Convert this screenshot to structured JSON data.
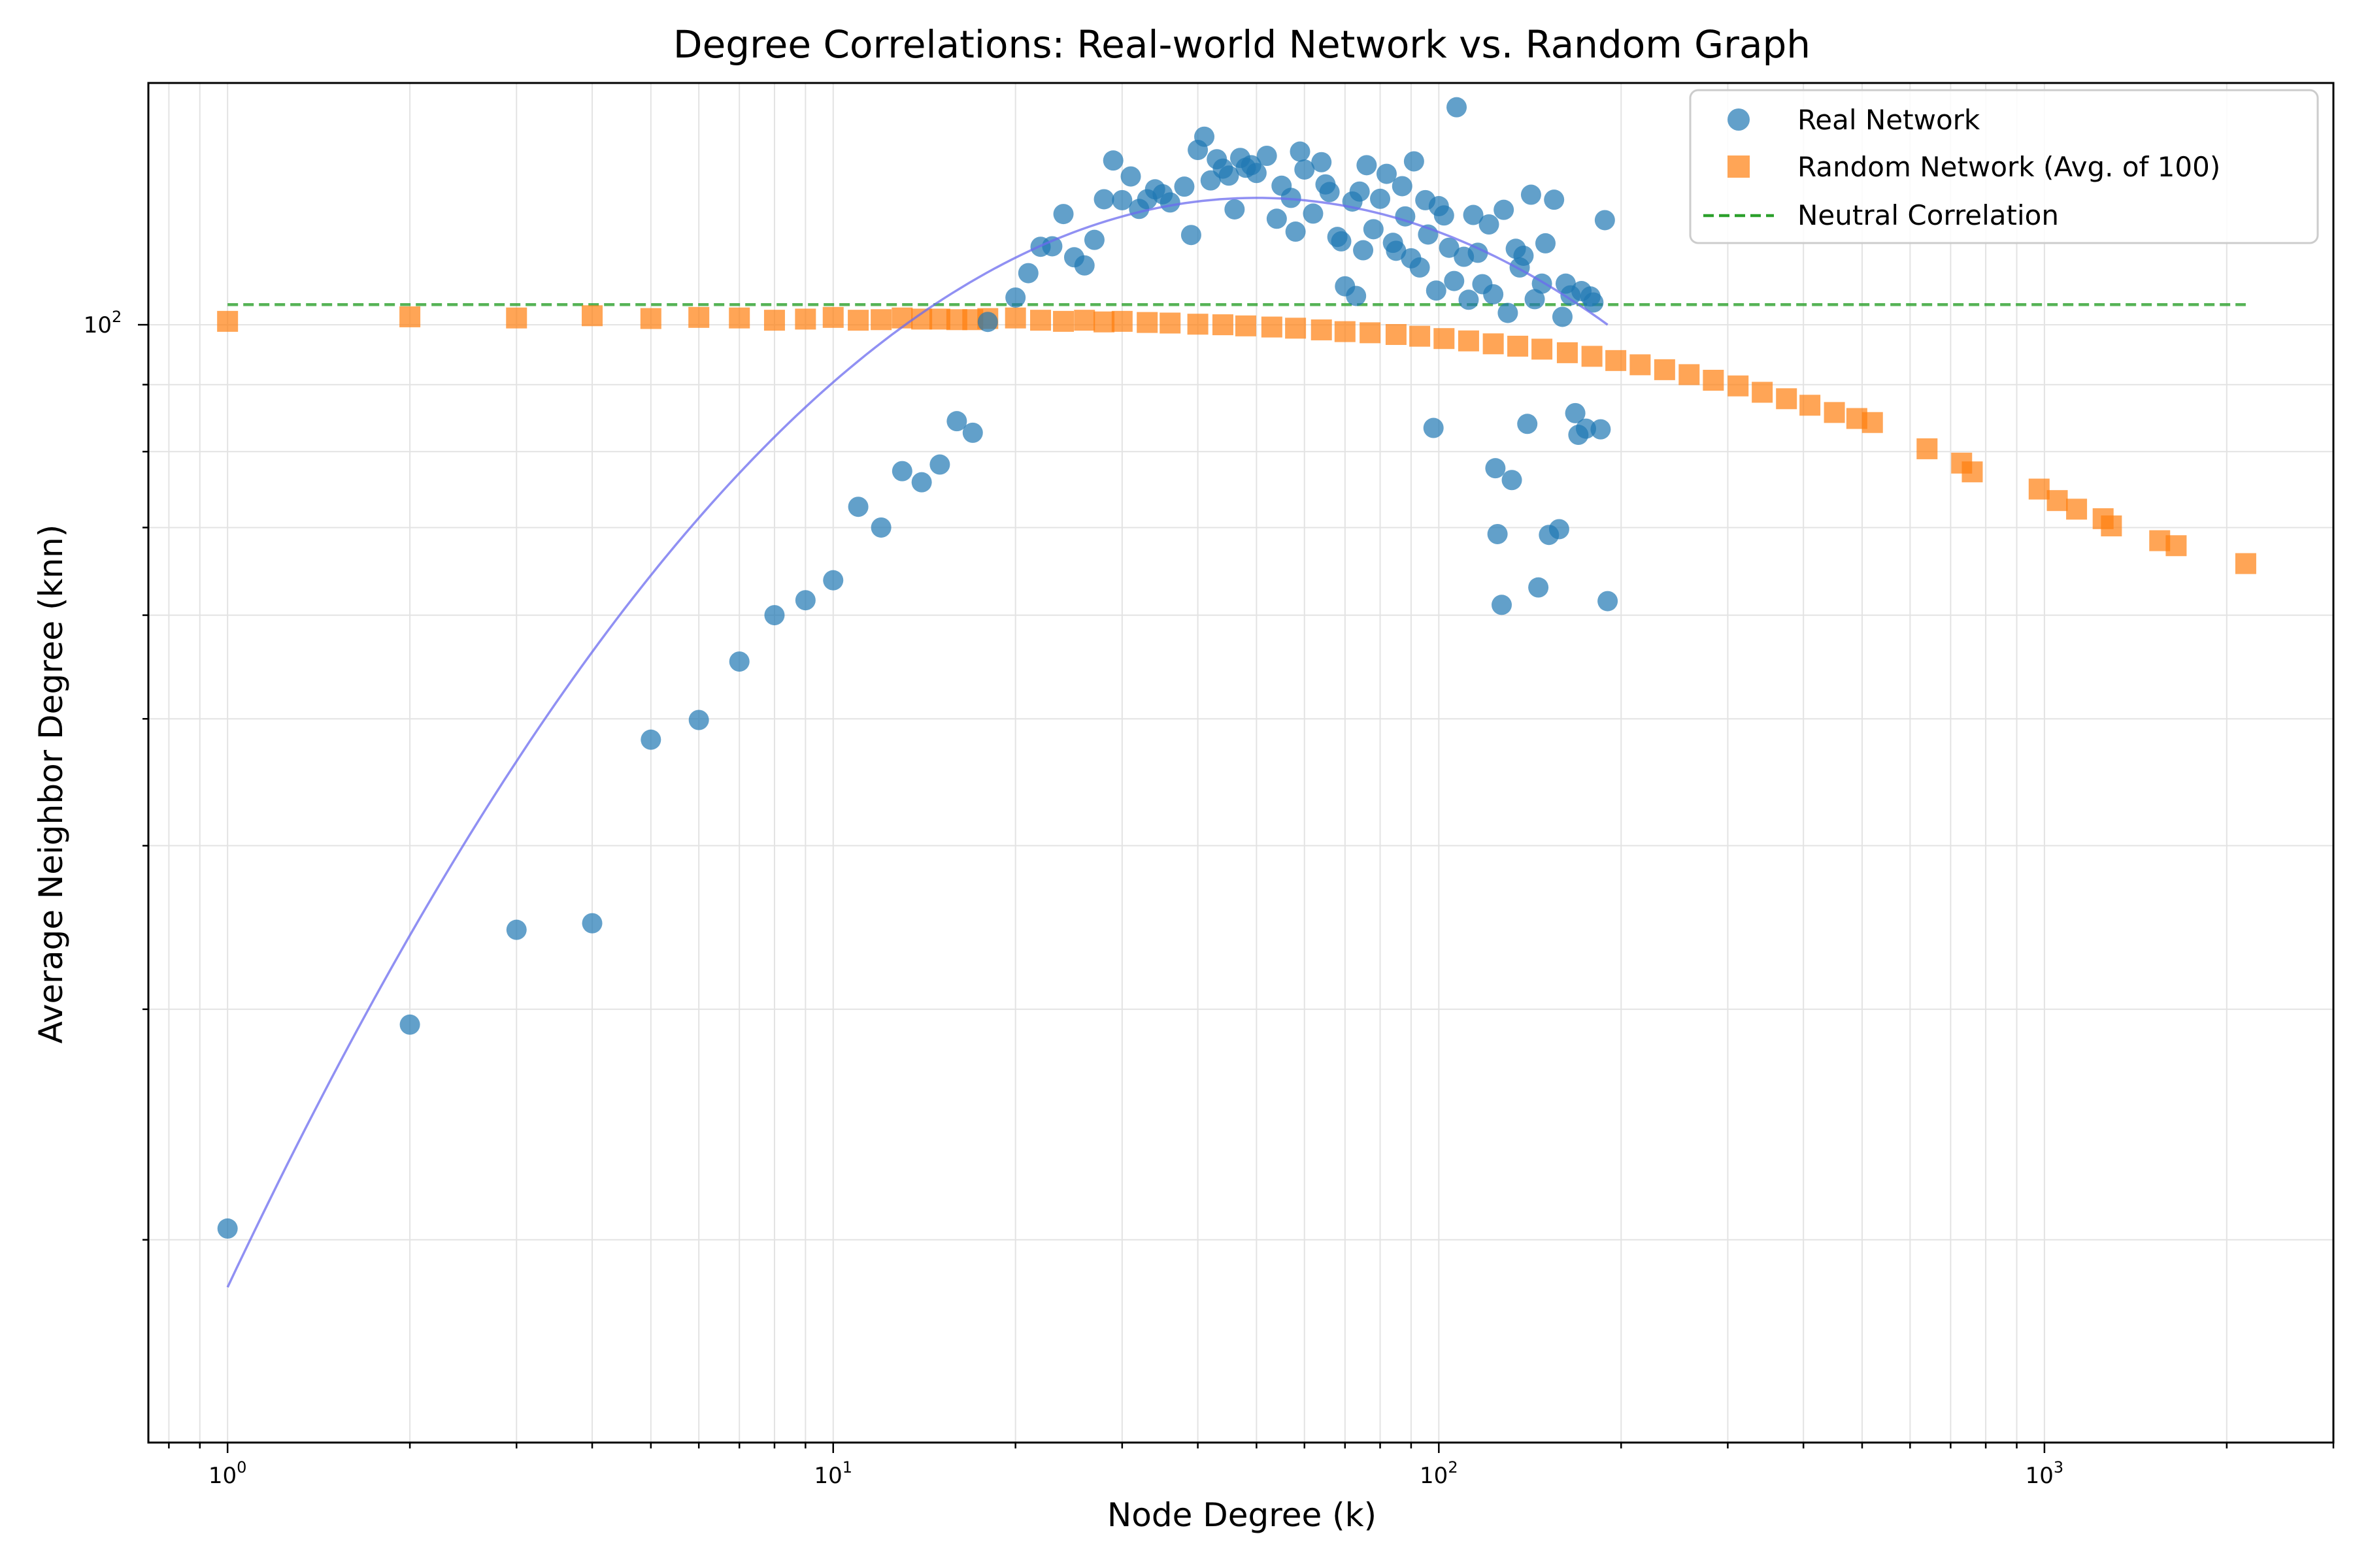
{
  "chart_data": {
    "type": "scatter",
    "title": "Degree Correlations: Real-world Network vs. Random Graph",
    "xlabel": "Node Degree (k)",
    "ylabel": "Average Neighbor Degree (knn)",
    "xscale": "log",
    "yscale": "log",
    "xlim": [
      0.74,
      3000
    ],
    "ylim": [
      14,
      153
    ],
    "grid": true,
    "legend_position": "top-right",
    "x_ticks": [
      {
        "base": "10",
        "exp": "0",
        "value": 1
      },
      {
        "base": "10",
        "exp": "1",
        "value": 10
      },
      {
        "base": "10",
        "exp": "2",
        "value": 100
      },
      {
        "base": "10",
        "exp": "3",
        "value": 1000
      }
    ],
    "y_ticks": [
      {
        "base": "10",
        "exp": "2",
        "value": 100
      }
    ],
    "colors": {
      "real": "#1f77b4",
      "random": "#ff7f0e",
      "neutral": "#2ca02c",
      "fit": "#6b6bef"
    },
    "series": [
      {
        "name": "Real Network",
        "marker": "circle",
        "points": [
          [
            1,
            20.4
          ],
          [
            2,
            29.2
          ],
          [
            3,
            34.5
          ],
          [
            4,
            34.9
          ],
          [
            5,
            48.2
          ],
          [
            6,
            49.9
          ],
          [
            7,
            55.3
          ],
          [
            8,
            60.0
          ],
          [
            9,
            61.6
          ],
          [
            10,
            63.8
          ],
          [
            11,
            72.6
          ],
          [
            12,
            70.0
          ],
          [
            13,
            77.3
          ],
          [
            14,
            75.8
          ],
          [
            15,
            78.2
          ],
          [
            16,
            84.4
          ],
          [
            17,
            82.7
          ],
          [
            18,
            100.5
          ],
          [
            20,
            104.9
          ],
          [
            21,
            109.5
          ],
          [
            22,
            114.7
          ],
          [
            23,
            114.8
          ],
          [
            24,
            121.5
          ],
          [
            25,
            112.6
          ],
          [
            26,
            111.0
          ],
          [
            27,
            116.1
          ],
          [
            28,
            124.7
          ],
          [
            29,
            133.5
          ],
          [
            30,
            124.5
          ],
          [
            31,
            129.8
          ],
          [
            32,
            122.6
          ],
          [
            33,
            124.7
          ],
          [
            34,
            126.9
          ],
          [
            35,
            125.8
          ],
          [
            36,
            124.0
          ],
          [
            38,
            127.5
          ],
          [
            39,
            117.1
          ],
          [
            40,
            136.0
          ],
          [
            41,
            139.2
          ],
          [
            42,
            128.9
          ],
          [
            43,
            133.8
          ],
          [
            44,
            131.6
          ],
          [
            45,
            130.0
          ],
          [
            46,
            122.5
          ],
          [
            47,
            134.1
          ],
          [
            48,
            131.8
          ],
          [
            49,
            132.4
          ],
          [
            50,
            130.6
          ],
          [
            52,
            134.6
          ],
          [
            54,
            120.5
          ],
          [
            55,
            127.7
          ],
          [
            57,
            125.0
          ],
          [
            58,
            117.8
          ],
          [
            59,
            135.6
          ],
          [
            60,
            131.4
          ],
          [
            62,
            121.6
          ],
          [
            64,
            133.1
          ],
          [
            65,
            128.0
          ],
          [
            66,
            126.3
          ],
          [
            68,
            116.7
          ],
          [
            69,
            115.8
          ],
          [
            70,
            107.0
          ],
          [
            72,
            124.2
          ],
          [
            73,
            105.2
          ],
          [
            74,
            126.4
          ],
          [
            75,
            114.0
          ],
          [
            76,
            132.4
          ],
          [
            78,
            118.3
          ],
          [
            80,
            124.8
          ],
          [
            82,
            130.4
          ],
          [
            84,
            115.5
          ],
          [
            85,
            113.9
          ],
          [
            87,
            127.6
          ],
          [
            88,
            121.0
          ],
          [
            90,
            112.4
          ],
          [
            91,
            133.3
          ],
          [
            93,
            110.6
          ],
          [
            95,
            124.5
          ],
          [
            96,
            117.2
          ],
          [
            98,
            83.4
          ],
          [
            99,
            106.2
          ],
          [
            100,
            123.2
          ],
          [
            102,
            121.2
          ],
          [
            104,
            114.5
          ],
          [
            106,
            108.0
          ],
          [
            107,
            146.6
          ],
          [
            110,
            112.7
          ],
          [
            112,
            104.5
          ],
          [
            114,
            121.3
          ],
          [
            116,
            113.5
          ],
          [
            118,
            107.4
          ],
          [
            121,
            119.3
          ],
          [
            123,
            105.5
          ],
          [
            124,
            77.7
          ],
          [
            125,
            69.2
          ],
          [
            127,
            61.1
          ],
          [
            128,
            122.4
          ],
          [
            130,
            102.1
          ],
          [
            132,
            76.1
          ],
          [
            134,
            114.3
          ],
          [
            136,
            110.6
          ],
          [
            138,
            112.9
          ],
          [
            140,
            84.0
          ],
          [
            142,
            125.7
          ],
          [
            144,
            104.6
          ],
          [
            146,
            63.0
          ],
          [
            148,
            107.5
          ],
          [
            150,
            115.4
          ],
          [
            152,
            69.1
          ],
          [
            155,
            124.6
          ],
          [
            158,
            69.8
          ],
          [
            160,
            101.4
          ],
          [
            162,
            107.5
          ],
          [
            165,
            105.3
          ],
          [
            168,
            85.6
          ],
          [
            170,
            82.4
          ],
          [
            172,
            106.1
          ],
          [
            175,
            83.3
          ],
          [
            178,
            105.1
          ],
          [
            180,
            104.0
          ],
          [
            185,
            83.2
          ],
          [
            188,
            120.2
          ],
          [
            190,
            61.5
          ]
        ]
      },
      {
        "name": "Random Network (Avg. of 100)",
        "marker": "square",
        "points": [
          [
            1,
            100.6
          ],
          [
            2,
            101.4
          ],
          [
            3,
            101.2
          ],
          [
            4,
            101.6
          ],
          [
            5,
            101.1
          ],
          [
            6,
            101.3
          ],
          [
            7,
            101.2
          ],
          [
            8,
            100.8
          ],
          [
            9,
            101.0
          ],
          [
            10,
            101.3
          ],
          [
            11,
            100.8
          ],
          [
            12,
            100.9
          ],
          [
            13,
            101.2
          ],
          [
            14,
            101.0
          ],
          [
            15,
            101.0
          ],
          [
            16,
            100.9
          ],
          [
            17,
            100.9
          ],
          [
            18,
            101.1
          ],
          [
            20,
            101.2
          ],
          [
            22,
            100.8
          ],
          [
            24,
            100.6
          ],
          [
            26,
            100.8
          ],
          [
            28,
            100.5
          ],
          [
            30,
            100.6
          ],
          [
            33,
            100.4
          ],
          [
            36,
            100.3
          ],
          [
            40,
            100.1
          ],
          [
            44,
            100.0
          ],
          [
            48,
            99.8
          ],
          [
            53,
            99.6
          ],
          [
            58,
            99.4
          ],
          [
            64,
            99.1
          ],
          [
            70,
            98.8
          ],
          [
            77,
            98.6
          ],
          [
            85,
            98.3
          ],
          [
            93,
            98.0
          ],
          [
            102,
            97.6
          ],
          [
            112,
            97.2
          ],
          [
            123,
            96.7
          ],
          [
            135,
            96.3
          ],
          [
            148,
            95.8
          ],
          [
            163,
            95.2
          ],
          [
            179,
            94.6
          ],
          [
            196,
            93.9
          ],
          [
            215,
            93.2
          ],
          [
            236,
            92.4
          ],
          [
            259,
            91.6
          ],
          [
            284,
            90.7
          ],
          [
            312,
            89.8
          ],
          [
            342,
            88.8
          ],
          [
            375,
            87.8
          ],
          [
            410,
            86.8
          ],
          [
            450,
            85.7
          ],
          [
            490,
            84.8
          ],
          [
            520,
            84.2
          ],
          [
            640,
            80.4
          ],
          [
            730,
            78.4
          ],
          [
            760,
            77.2
          ],
          [
            980,
            74.9
          ],
          [
            1050,
            73.4
          ],
          [
            1130,
            72.3
          ],
          [
            1250,
            71.1
          ],
          [
            1290,
            70.2
          ],
          [
            1550,
            68.4
          ],
          [
            1650,
            67.8
          ],
          [
            2150,
            65.7
          ]
        ]
      },
      {
        "name": "Neutral Correlation",
        "marker": "dashed-line",
        "points": [
          [
            1,
            103.6
          ],
          [
            2150,
            103.6
          ]
        ]
      }
    ],
    "fit_curve": {
      "type": "quadratic-in-log",
      "peak_x": 50,
      "peak_y": 125,
      "x_range": [
        1,
        190
      ],
      "endpoints": [
        [
          1,
          18.4
        ],
        [
          190,
          89.5
        ]
      ]
    }
  }
}
